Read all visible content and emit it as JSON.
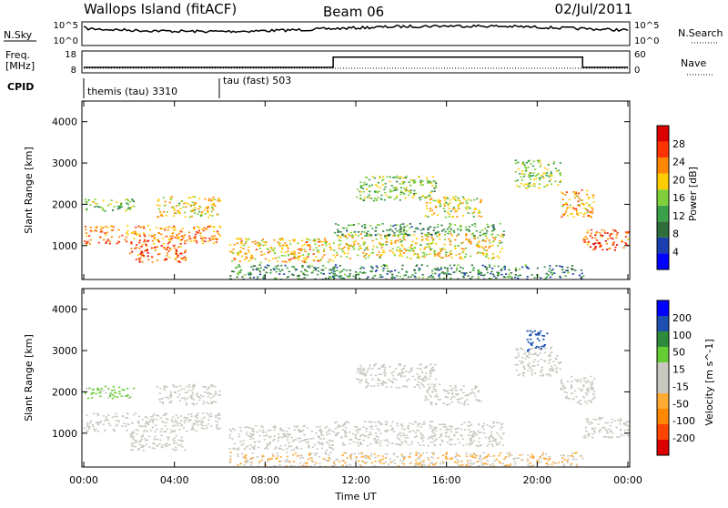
{
  "header": {
    "title": "Wallops Island (fitACF)",
    "beam": "Beam 06",
    "date": "02/Jul/2011"
  },
  "top_panels": {
    "nsky_label": "N.Sky",
    "nsky_ticks": [
      "10^5",
      "10^0"
    ],
    "nsearch_label": "N.Search",
    "nsearch_ticks": [
      "10^5",
      "10^0"
    ],
    "freq_label": "Freq.",
    "freq_unit": "[MHz]",
    "freq_ticks": [
      "18",
      "8"
    ],
    "nave_label": "Nave",
    "nave_ticks": [
      "60",
      "0"
    ],
    "cpid_label": "CPID",
    "cpid_segments": [
      {
        "label": "themis (tau) 3310",
        "start_hour": 0
      },
      {
        "label": "tau (fast) 503",
        "start_hour": 6
      }
    ],
    "freq_trace": [
      {
        "hour": 0,
        "mhz": 10.5
      },
      {
        "hour": 11,
        "mhz": 10.5
      },
      {
        "hour": 11,
        "mhz": 15.2
      },
      {
        "hour": 22,
        "mhz": 15.2
      },
      {
        "hour": 22,
        "mhz": 10.5
      },
      {
        "hour": 24,
        "mhz": 10.5
      }
    ]
  },
  "chart_data": [
    {
      "type": "heatmap",
      "name": "Power",
      "ylabel": "Slant Range [km]",
      "xlabel": "Time UT",
      "x_ticks": [
        "00:00",
        "04:00",
        "08:00",
        "12:00",
        "16:00",
        "20:00",
        "00:00"
      ],
      "x_range_hours": [
        0,
        24
      ],
      "y_ticks": [
        1000,
        2000,
        3000,
        4000
      ],
      "ylim": [
        180,
        4500
      ],
      "colorbar_label": "Power [dB]",
      "colorbar_ticks": [
        "28",
        "24",
        "20",
        "16",
        "12",
        "8",
        "4"
      ],
      "colorbar_colors": [
        "#0000ff",
        "#1c3fb0",
        "#2d6e3a",
        "#3aa04a",
        "#7fd03a",
        "#ffcc00",
        "#ff8800",
        "#ff3300",
        "#dd0000"
      ],
      "echo_regions": [
        {
          "t0": 0.0,
          "t1": 6.0,
          "r0": 1050,
          "r1": 1500,
          "power": 22
        },
        {
          "t0": 0.0,
          "t1": 2.2,
          "r0": 1850,
          "r1": 2150,
          "power": 14
        },
        {
          "t0": 3.2,
          "t1": 6.0,
          "r0": 1700,
          "r1": 2200,
          "power": 18
        },
        {
          "t0": 2.0,
          "t1": 4.5,
          "r0": 600,
          "r1": 1050,
          "power": 24
        },
        {
          "t0": 6.4,
          "t1": 11.0,
          "r0": 600,
          "r1": 1200,
          "power": 19
        },
        {
          "t0": 11.0,
          "t1": 18.5,
          "r0": 700,
          "r1": 1300,
          "power": 18
        },
        {
          "t0": 11.0,
          "t1": 18.5,
          "r0": 1250,
          "r1": 1550,
          "power": 11
        },
        {
          "t0": 12.0,
          "t1": 15.5,
          "r0": 2100,
          "r1": 2700,
          "power": 14
        },
        {
          "t0": 15.0,
          "t1": 17.5,
          "r0": 1700,
          "r1": 2200,
          "power": 17
        },
        {
          "t0": 19.0,
          "t1": 21.0,
          "r0": 2400,
          "r1": 3100,
          "power": 15
        },
        {
          "t0": 21.0,
          "t1": 22.5,
          "r0": 1700,
          "r1": 2400,
          "power": 20
        },
        {
          "t0": 22.0,
          "t1": 24.0,
          "r0": 900,
          "r1": 1400,
          "power": 24
        },
        {
          "t0": 6.4,
          "t1": 22.0,
          "r0": 200,
          "r1": 550,
          "power": 10
        }
      ]
    },
    {
      "type": "heatmap",
      "name": "Velocity",
      "ylabel": "Slant Range [km]",
      "xlabel": "Time UT",
      "x_ticks": [
        "00:00",
        "04:00",
        "08:00",
        "12:00",
        "16:00",
        "20:00",
        "00:00"
      ],
      "x_range_hours": [
        0,
        24
      ],
      "y_ticks": [
        1000,
        2000,
        3000,
        4000
      ],
      "ylim": [
        180,
        4500
      ],
      "colorbar_label": "Velocity [m s^-1]",
      "colorbar_ticks": [
        "200",
        "100",
        "50",
        "15",
        "-15",
        "-50",
        "-100",
        "-200"
      ],
      "colorbar_colors": [
        "#dd0000",
        "#ff4400",
        "#ff8800",
        "#ffaa33",
        "#c8c8c0",
        "#c8c8c0",
        "#66cc33",
        "#2d8a3a",
        "#1c4fb0",
        "#0000ff"
      ],
      "echo_regions": [
        {
          "t0": 0.0,
          "t1": 6.0,
          "r0": 1050,
          "r1": 1500,
          "velocity": 0
        },
        {
          "t0": 0.0,
          "t1": 2.2,
          "r0": 1850,
          "r1": 2150,
          "velocity": 40
        },
        {
          "t0": 3.2,
          "t1": 6.0,
          "r0": 1700,
          "r1": 2200,
          "velocity": 0
        },
        {
          "t0": 2.0,
          "t1": 4.5,
          "r0": 600,
          "r1": 1050,
          "velocity": 0
        },
        {
          "t0": 6.4,
          "t1": 11.0,
          "r0": 600,
          "r1": 1200,
          "velocity": 0
        },
        {
          "t0": 11.0,
          "t1": 18.5,
          "r0": 700,
          "r1": 1300,
          "velocity": 0
        },
        {
          "t0": 12.0,
          "t1": 15.5,
          "r0": 2100,
          "r1": 2700,
          "velocity": 0
        },
        {
          "t0": 15.0,
          "t1": 17.5,
          "r0": 1700,
          "r1": 2200,
          "velocity": 0
        },
        {
          "t0": 19.0,
          "t1": 21.0,
          "r0": 2400,
          "r1": 3100,
          "velocity": 0
        },
        {
          "t0": 19.5,
          "t1": 20.5,
          "r0": 3000,
          "r1": 3500,
          "velocity": 180
        },
        {
          "t0": 21.0,
          "t1": 22.5,
          "r0": 1700,
          "r1": 2400,
          "velocity": 0
        },
        {
          "t0": 22.0,
          "t1": 24.0,
          "r0": 900,
          "r1": 1400,
          "velocity": 0
        },
        {
          "t0": 6.4,
          "t1": 22.0,
          "r0": 200,
          "r1": 550,
          "velocity": -60
        }
      ]
    }
  ]
}
